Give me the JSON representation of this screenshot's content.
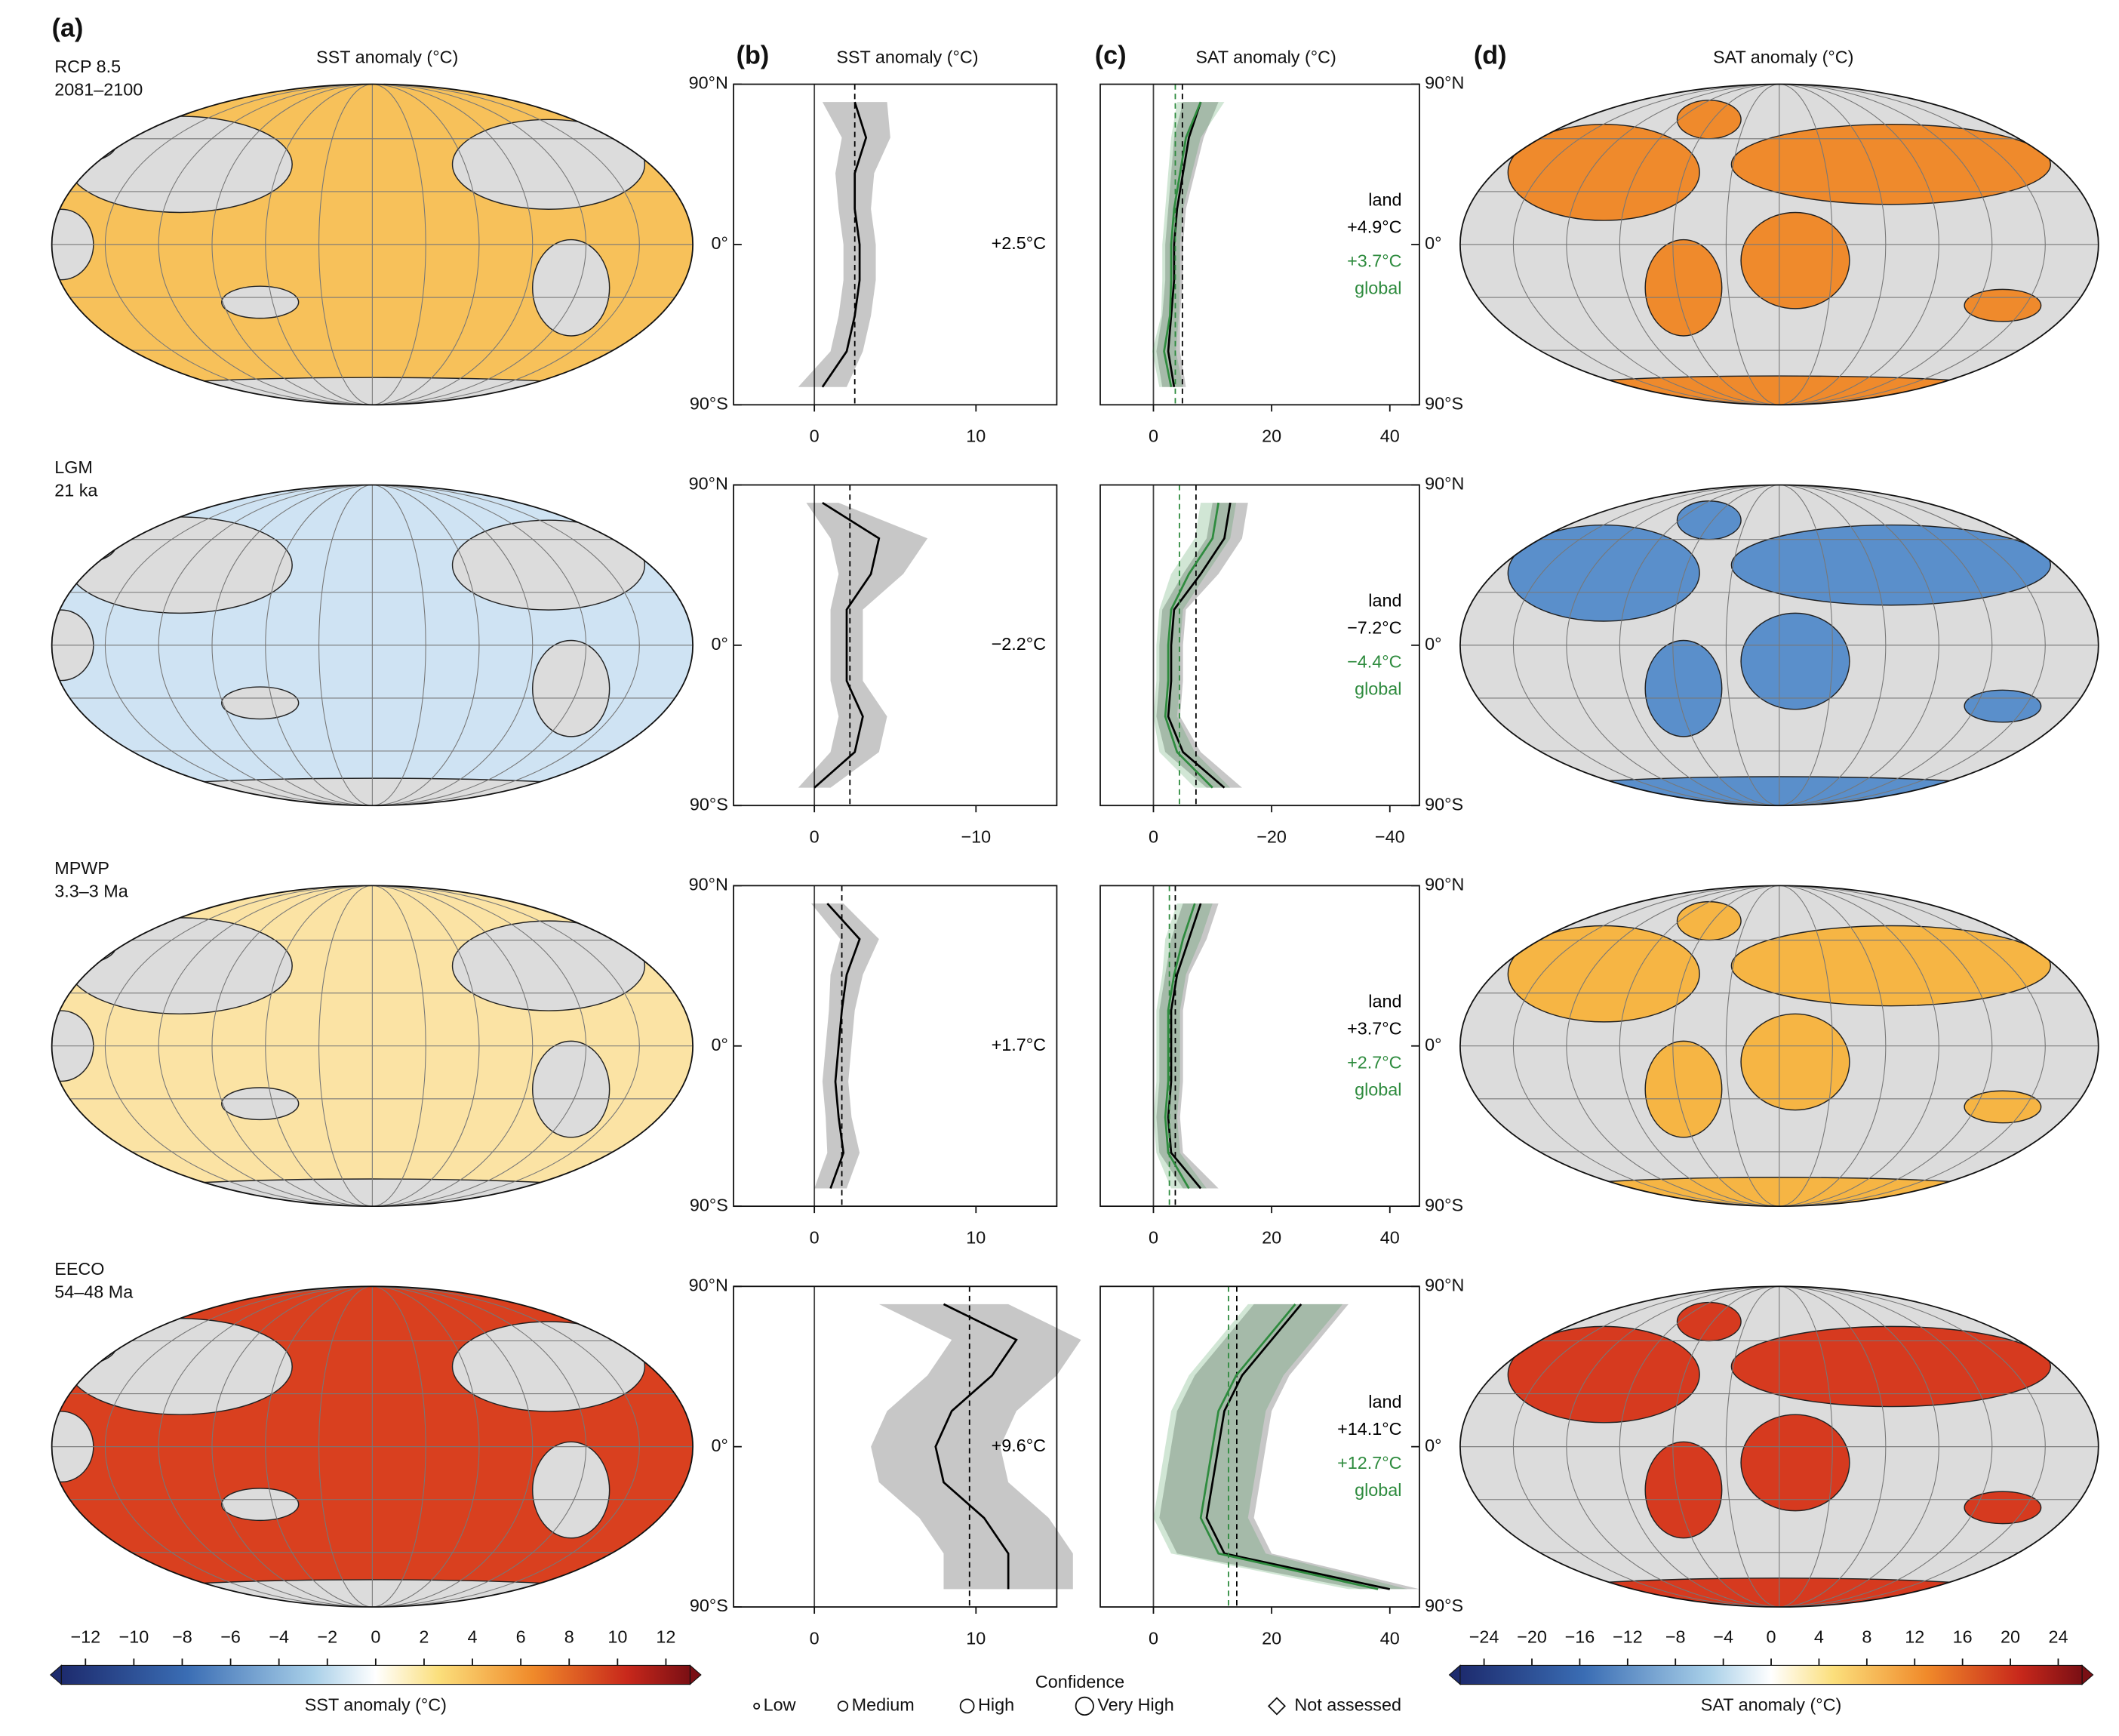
{
  "panel_labels": [
    "(a)",
    "(b)",
    "(c)",
    "(d)"
  ],
  "headers": [
    "SST anomaly (°C)",
    "SST anomaly (°C)",
    "SAT anomaly (°C)",
    "SAT anomaly (°C)"
  ],
  "periods": [
    {
      "name": "RCP 8.5",
      "range": "2081–2100",
      "sst_color": "#f7c15a",
      "sat_color": "#ef8a2c"
    },
    {
      "name": "LGM",
      "range": "21 ka",
      "sst_color": "#cfe3f3",
      "sat_color": "#5a8fcb"
    },
    {
      "name": "MPWP",
      "range": "3.3–3 Ma",
      "sst_color": "#fbe3a4",
      "sat_color": "#f6b544"
    },
    {
      "name": "EECO",
      "range": "54–48 Ma",
      "sst_color": "#d9401f",
      "sat_color": "#d63a1f"
    }
  ],
  "chart_data": [
    {
      "type": "line",
      "latitudes": [
        -80,
        -60,
        -40,
        -20,
        0,
        20,
        40,
        60,
        80
      ],
      "xlim": [
        -5,
        15
      ],
      "xticks": [
        0,
        10
      ],
      "ylim": [
        -90,
        90
      ],
      "yticks": [
        {
          "value": -90,
          "label": "90°S"
        },
        {
          "value": 0,
          "label": "0°"
        },
        {
          "value": 90,
          "label": "90°N"
        }
      ],
      "ytick_side": "left",
      "series": [
        {
          "color": "#000000",
          "values": [
            0.5,
            2,
            2.5,
            2.8,
            2.8,
            2.5,
            2.5,
            3.2,
            2.5
          ],
          "spread": [
            1.5,
            1,
            1,
            1,
            1,
            1,
            1.2,
            1.5,
            2
          ],
          "mean": 2.5,
          "mean_label": "+2.5°C"
        }
      ]
    },
    {
      "type": "line",
      "latitudes": [
        -80,
        -60,
        -40,
        -20,
        0,
        20,
        40,
        60,
        80
      ],
      "xlim": [
        -9,
        45
      ],
      "xticks": [
        0,
        20,
        40
      ],
      "ylim": [
        -90,
        90
      ],
      "yticks": [
        {
          "value": -90,
          "label": "90°S"
        },
        {
          "value": 0,
          "label": "0°"
        },
        {
          "value": 90,
          "label": "90°N"
        }
      ],
      "ytick_side": "right",
      "series": [
        {
          "name": "land",
          "color": "#000000",
          "values": [
            3.5,
            2.5,
            3,
            3.5,
            3.5,
            4,
            5,
            6,
            8
          ],
          "spread": [
            2,
            2,
            1.5,
            1.5,
            1.5,
            1.5,
            2,
            2.5,
            3
          ],
          "mean": 4.9,
          "mean_label": "+4.9°C"
        },
        {
          "name": "global",
          "color": "#2e8b3e",
          "values": [
            3,
            1.8,
            2.8,
            3,
            3,
            3.5,
            4.5,
            5.5,
            8
          ],
          "spread": [
            2,
            2,
            1.5,
            1.5,
            1.5,
            1.5,
            2,
            2.5,
            4
          ],
          "mean": 3.7,
          "mean_label": "+3.7°C"
        }
      ]
    },
    {
      "type": "line",
      "latitudes": [
        -80,
        -60,
        -40,
        -20,
        0,
        20,
        40,
        60,
        80
      ],
      "xlim": [
        5,
        -15
      ],
      "xticks": [
        0,
        {
          "value": -10,
          "label": "−10"
        }
      ],
      "ylim": [
        -90,
        90
      ],
      "yticks": [
        {
          "value": -90,
          "label": "90°S"
        },
        {
          "value": 0,
          "label": "0°"
        },
        {
          "value": 90,
          "label": "90°N"
        }
      ],
      "ytick_side": "left",
      "series": [
        {
          "color": "#000000",
          "values": [
            0,
            -2.5,
            -3,
            -2,
            -2,
            -2,
            -3.5,
            -4,
            -0.5
          ],
          "spread": [
            1,
            1.5,
            1.5,
            1,
            1,
            1,
            2,
            3,
            1
          ],
          "mean": -2.2,
          "mean_label": "−2.2°C"
        }
      ]
    },
    {
      "type": "line",
      "latitudes": [
        -80,
        -60,
        -40,
        -20,
        0,
        20,
        40,
        60,
        80
      ],
      "xlim": [
        9,
        -45
      ],
      "xticks": [
        0,
        {
          "value": -20,
          "label": "−20"
        },
        {
          "value": -40,
          "label": "−40"
        }
      ],
      "ylim": [
        -90,
        90
      ],
      "yticks": [
        {
          "value": -90,
          "label": "90°S"
        },
        {
          "value": 0,
          "label": "0°"
        },
        {
          "value": 90,
          "label": "90°N"
        }
      ],
      "ytick_side": "right",
      "series": [
        {
          "name": "land",
          "color": "#000000",
          "values": [
            -12,
            -5,
            -2.5,
            -3,
            -3,
            -3.5,
            -8,
            -12,
            -13
          ],
          "spread": [
            3,
            3,
            2,
            2,
            2,
            2,
            3,
            3,
            3
          ],
          "mean": -7.2,
          "mean_label": "−7.2°C"
        },
        {
          "name": "global",
          "color": "#2e8b3e",
          "values": [
            -10,
            -4,
            -2,
            -2.5,
            -2.5,
            -3,
            -6,
            -10,
            -11
          ],
          "spread": [
            3,
            3,
            2,
            2,
            2,
            2,
            3,
            3,
            3
          ],
          "mean": -4.4,
          "mean_label": "−4.4°C"
        }
      ]
    },
    {
      "type": "line",
      "latitudes": [
        -80,
        -60,
        -40,
        -20,
        0,
        20,
        40,
        60,
        80
      ],
      "xlim": [
        -5,
        15
      ],
      "xticks": [
        0,
        10
      ],
      "ylim": [
        -90,
        90
      ],
      "yticks": [
        {
          "value": -90,
          "label": "90°S"
        },
        {
          "value": 0,
          "label": "0°"
        },
        {
          "value": 90,
          "label": "90°N"
        }
      ],
      "ytick_side": "left",
      "series": [
        {
          "color": "#000000",
          "values": [
            1,
            1.8,
            1.5,
            1.3,
            1.5,
            1.7,
            2,
            2.8,
            0.8
          ],
          "spread": [
            1,
            1,
            0.8,
            0.8,
            0.8,
            0.8,
            1,
            1.2,
            1
          ],
          "mean": 1.7,
          "mean_label": "+1.7°C"
        }
      ]
    },
    {
      "type": "line",
      "latitudes": [
        -80,
        -60,
        -40,
        -20,
        0,
        20,
        40,
        60,
        80
      ],
      "xlim": [
        -9,
        45
      ],
      "xticks": [
        0,
        20,
        40
      ],
      "ylim": [
        -90,
        90
      ],
      "yticks": [
        {
          "value": -90,
          "label": "90°S"
        },
        {
          "value": 0,
          "label": "0°"
        },
        {
          "value": 90,
          "label": "90°N"
        }
      ],
      "ytick_side": "right",
      "series": [
        {
          "name": "land",
          "color": "#000000",
          "values": [
            8,
            3,
            2.5,
            3,
            3,
            3,
            4,
            6,
            8
          ],
          "spread": [
            3,
            2,
            2,
            2,
            2,
            2,
            2,
            3,
            3
          ],
          "mean": 3.7,
          "mean_label": "+3.7°C"
        },
        {
          "name": "global",
          "color": "#2e8b3e",
          "values": [
            6,
            2.5,
            2,
            2.5,
            2.5,
            2.5,
            3.5,
            5,
            7
          ],
          "spread": [
            3,
            2,
            2,
            2,
            2,
            2,
            2,
            3,
            3
          ],
          "mean": 2.7,
          "mean_label": "+2.7°C"
        }
      ]
    },
    {
      "type": "line",
      "latitudes": [
        -80,
        -60,
        -40,
        -20,
        0,
        20,
        40,
        60,
        80
      ],
      "xlim": [
        -5,
        15
      ],
      "xticks": [
        0,
        10
      ],
      "ylim": [
        -90,
        90
      ],
      "yticks": [
        {
          "value": -90,
          "label": "90°S"
        },
        {
          "value": 0,
          "label": "0°"
        },
        {
          "value": 90,
          "label": "90°N"
        }
      ],
      "ytick_side": "left",
      "series": [
        {
          "color": "#000000",
          "values": [
            12,
            12,
            10.5,
            8,
            7.5,
            8.5,
            11,
            12.5,
            8
          ],
          "spread": [
            4,
            4,
            4,
            4,
            4,
            4,
            4,
            4,
            4
          ],
          "mean": 9.6,
          "mean_label": "+9.6°C"
        }
      ]
    },
    {
      "type": "line",
      "latitudes": [
        -80,
        -60,
        -40,
        -20,
        0,
        20,
        40,
        60,
        80
      ],
      "xlim": [
        -9,
        45
      ],
      "xticks": [
        0,
        20,
        40
      ],
      "ylim": [
        -90,
        90
      ],
      "yticks": [
        {
          "value": -90,
          "label": "90°S"
        },
        {
          "value": 0,
          "label": "0°"
        },
        {
          "value": 90,
          "label": "90°N"
        }
      ],
      "ytick_side": "right",
      "series": [
        {
          "name": "land",
          "color": "#000000",
          "values": [
            40,
            12,
            9,
            10,
            11,
            12,
            15,
            20,
            25
          ],
          "spread": [
            5,
            8,
            8,
            8,
            8,
            8,
            8,
            8,
            8
          ],
          "mean": 14.1,
          "mean_label": "+14.1°C"
        },
        {
          "name": "global",
          "color": "#2e8b3e",
          "values": [
            38,
            11,
            8,
            9,
            10,
            11,
            14,
            19,
            24
          ],
          "spread": [
            5,
            8,
            8,
            8,
            8,
            8,
            8,
            8,
            8
          ],
          "mean": 12.7,
          "mean_label": "+12.7°C"
        }
      ]
    }
  ],
  "colorbars": [
    {
      "label": "SST anomaly (°C)",
      "xlim": [
        -13,
        13
      ],
      "ticks": [
        {
          "value": -12,
          "label": "−12"
        },
        {
          "value": -10,
          "label": "−10"
        },
        {
          "value": -8,
          "label": "−8"
        },
        {
          "value": -6,
          "label": "−6"
        },
        {
          "value": -4,
          "label": "−4"
        },
        {
          "value": -2,
          "label": "−2"
        },
        0,
        2,
        4,
        6,
        8,
        10,
        12
      ]
    },
    {
      "label": "SAT anomaly (°C)",
      "xlim": [
        -26,
        26
      ],
      "ticks": [
        {
          "value": -24,
          "label": "−24"
        },
        {
          "value": -20,
          "label": "−20"
        },
        {
          "value": -16,
          "label": "−16"
        },
        {
          "value": -12,
          "label": "−12"
        },
        {
          "value": -8,
          "label": "−8"
        },
        {
          "value": -4,
          "label": "−4"
        },
        0,
        4,
        8,
        12,
        16,
        20,
        24
      ]
    }
  ],
  "confidence": {
    "title": "Confidence",
    "items": [
      "Low",
      "Medium",
      "High",
      "Very High",
      "Not assessed"
    ]
  }
}
